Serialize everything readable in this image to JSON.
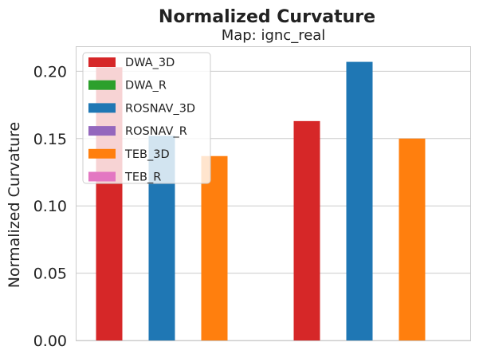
{
  "chart_data": {
    "type": "bar",
    "title": "Normalized Curvature",
    "subtitle": "Map: ignc_real",
    "xlabel": "",
    "ylabel": "Normalized Curvature",
    "ylim": [
      0,
      0.218
    ],
    "yticks": [
      "0.00",
      "0.05",
      "0.10",
      "0.15",
      "0.20"
    ],
    "grid": true,
    "legend_position": "top-left",
    "bars": [
      {
        "series": "DWA_3D",
        "value": 0.203
      },
      {
        "series": "ROSNAV_3D",
        "value": 0.152
      },
      {
        "series": "TEB_3D",
        "value": 0.137
      },
      {
        "series": "DWA_3D",
        "value": 0.163
      },
      {
        "series": "ROSNAV_3D",
        "value": 0.207
      },
      {
        "series": "TEB_3D",
        "value": 0.15
      }
    ],
    "series": [
      {
        "name": "DWA_3D",
        "color": "#d62728"
      },
      {
        "name": "DWA_R",
        "color": "#2ca02c"
      },
      {
        "name": "ROSNAV_3D",
        "color": "#1f77b4"
      },
      {
        "name": "ROSNAV_R",
        "color": "#9467bd"
      },
      {
        "name": "TEB_3D",
        "color": "#ff7f0e"
      },
      {
        "name": "TEB_R",
        "color": "#e377c2"
      }
    ]
  }
}
